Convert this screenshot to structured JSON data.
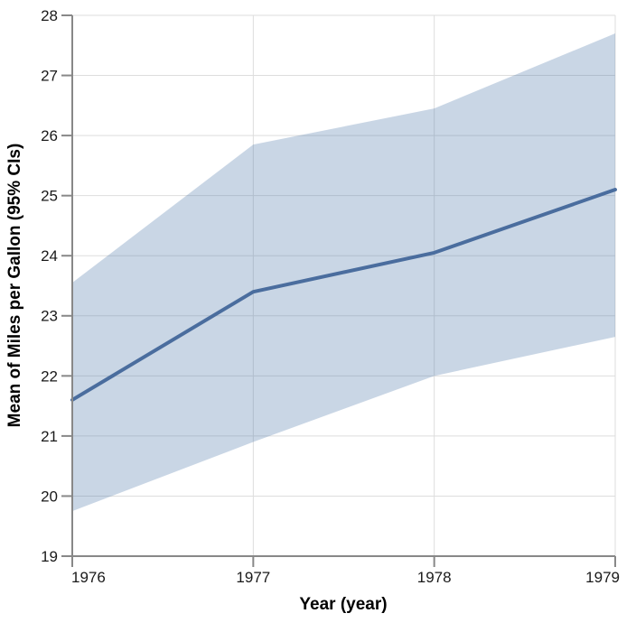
{
  "chart_data": {
    "type": "line",
    "title": "",
    "xlabel": "Year (year)",
    "ylabel": "Mean of Miles per Gallon (95% CIs)",
    "x": [
      1976,
      1977,
      1978,
      1979
    ],
    "series": [
      {
        "name": "Mean of Miles per Gallon",
        "role": "mean",
        "values": [
          21.6,
          23.4,
          24.05,
          25.1
        ]
      },
      {
        "name": "95% CI lower bound",
        "role": "ci_lower",
        "values": [
          19.75,
          20.9,
          22.0,
          22.65
        ]
      },
      {
        "name": "95% CI upper bound",
        "role": "ci_upper",
        "values": [
          23.55,
          25.85,
          26.45,
          27.7
        ]
      }
    ],
    "xlim": [
      1976,
      1979
    ],
    "ylim": [
      19,
      28
    ],
    "x_ticks": [
      1976,
      1977,
      1978,
      1979
    ],
    "y_ticks": [
      19,
      20,
      21,
      22,
      23,
      24,
      25,
      26,
      27,
      28
    ],
    "grid": true,
    "legend": false,
    "band_opacity": 0.3,
    "colors": {
      "mean_line": "#4a6d9e",
      "band_fill": "#4c78a8",
      "gridline": "#dddddd",
      "axis": "#888888",
      "tick_text": "#1a1a1a",
      "title_text": "#000000",
      "background": "#ffffff"
    }
  }
}
